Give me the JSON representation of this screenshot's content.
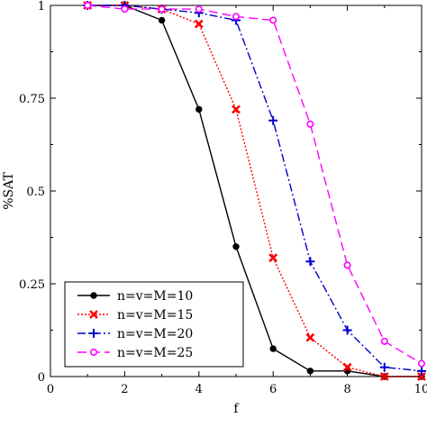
{
  "chart_data": {
    "type": "line",
    "xlabel": "f",
    "ylabel": "%SAT",
    "xlim": [
      0,
      10
    ],
    "ylim": [
      0,
      1
    ],
    "xticks": [
      0,
      2,
      4,
      6,
      8,
      10
    ],
    "xtick_labels": [
      "0",
      "2",
      "4",
      "6",
      "8",
      "10"
    ],
    "yticks": [
      0,
      0.25,
      0.5,
      0.75,
      1
    ],
    "ytick_labels": [
      "0",
      "0.25",
      "0.5",
      "0.75",
      "1"
    ],
    "grid": false,
    "legend_position": "bottom-left",
    "x": [
      1,
      2,
      3,
      4,
      5,
      6,
      7,
      8,
      9,
      10
    ],
    "series": [
      {
        "name": "n=v=M=10",
        "color": "#000000",
        "dash": "solid",
        "marker": "filled-circle",
        "values": [
          1.0,
          1.0,
          0.96,
          0.72,
          0.35,
          0.075,
          0.015,
          0.015,
          0.0,
          0.0
        ]
      },
      {
        "name": "n=v=M=15",
        "color": "#ff0000",
        "dash": "dotted",
        "marker": "x",
        "values": [
          1.0,
          1.0,
          0.99,
          0.95,
          0.72,
          0.32,
          0.105,
          0.025,
          0.0,
          0.0
        ]
      },
      {
        "name": "n=v=M=20",
        "color": "#0000cc",
        "dash": "dash-dot",
        "marker": "plus",
        "values": [
          1.0,
          1.0,
          0.99,
          0.98,
          0.96,
          0.69,
          0.31,
          0.125,
          0.025,
          0.015
        ]
      },
      {
        "name": "n=v=M=25",
        "color": "#ff00ff",
        "dash": "dashed",
        "marker": "open-circle",
        "values": [
          1.0,
          0.99,
          0.99,
          0.99,
          0.97,
          0.96,
          0.68,
          0.3,
          0.095,
          0.035
        ]
      }
    ]
  }
}
